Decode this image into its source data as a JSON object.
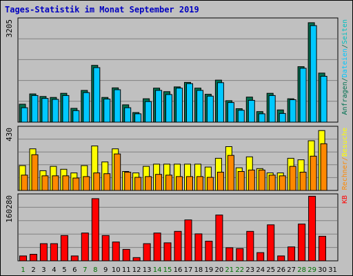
{
  "title": "Tages-Statistik im Monat September 2019",
  "colors": {
    "background": "#c0c0c0",
    "plot_background": "#c0c0c0",
    "grid": "#808080",
    "title": "#0000c0",
    "weekday": "#000000",
    "weekend": "#007000",
    "anfragen": "#007050",
    "dateien": "#00c8ff",
    "seiten": "#00c0c0",
    "besuche": "#ffff00",
    "rechner": "#ff8800",
    "kb": "#ff0000",
    "separator": "#000000"
  },
  "chart_data": [
    {
      "type": "bar",
      "panel": "top",
      "ylabel_max": "3205",
      "ylim": [
        0,
        3205
      ],
      "categories": [
        "1",
        "2",
        "3",
        "4",
        "5",
        "6",
        "7",
        "8",
        "9",
        "10",
        "11",
        "12",
        "13",
        "14",
        "15",
        "16",
        "17",
        "18",
        "19",
        "20",
        "21",
        "22",
        "23",
        "24",
        "25",
        "26",
        "27",
        "28",
        "29",
        "30",
        "31"
      ],
      "weekend_days": [
        "1",
        "7",
        "8",
        "14",
        "15",
        "21",
        "22",
        "28",
        "29"
      ],
      "series": [
        {
          "name": "Anfragen",
          "color": "#007050",
          "values": [
            560,
            880,
            800,
            770,
            900,
            430,
            990,
            1770,
            770,
            1070,
            540,
            300,
            730,
            1060,
            950,
            1100,
            1240,
            1060,
            870,
            1310,
            670,
            420,
            780,
            330,
            900,
            380,
            730,
            1730,
            3100,
            1530,
            0
          ]
        },
        {
          "name": "Dateien",
          "color": "#00c8ff",
          "values": [
            450,
            830,
            740,
            710,
            830,
            360,
            920,
            1700,
            720,
            1010,
            450,
            260,
            640,
            990,
            860,
            1060,
            1200,
            990,
            810,
            1230,
            610,
            370,
            680,
            260,
            830,
            270,
            700,
            1680,
            3010,
            1430,
            0
          ]
        }
      ],
      "right_labels": [
        {
          "text": "Anfragen",
          "color": "#007050"
        },
        {
          "text": "/",
          "color": "#007050"
        },
        {
          "text": "Dateien",
          "color": "#00c8ff"
        },
        {
          "text": "/",
          "color": "#007050"
        },
        {
          "text": "Seiten",
          "color": "#00c0c0"
        }
      ]
    },
    {
      "type": "bar",
      "panel": "middle",
      "ylabel_max": "430",
      "ylim": [
        0,
        430
      ],
      "categories": [
        "1",
        "2",
        "3",
        "4",
        "5",
        "6",
        "7",
        "8",
        "9",
        "10",
        "11",
        "12",
        "13",
        "14",
        "15",
        "16",
        "17",
        "18",
        "19",
        "20",
        "21",
        "22",
        "23",
        "24",
        "25",
        "26",
        "27",
        "28",
        "29",
        "30",
        "31"
      ],
      "series": [
        {
          "name": "Besuche",
          "color": "#ffff00",
          "values": [
            170,
            285,
            135,
            165,
            145,
            120,
            170,
            305,
            195,
            285,
            130,
            120,
            165,
            180,
            180,
            180,
            180,
            180,
            160,
            220,
            300,
            155,
            230,
            150,
            120,
            120,
            220,
            210,
            340,
            410,
            0
          ]
        },
        {
          "name": "Rechner",
          "color": "#ff8800",
          "values": [
            105,
            245,
            100,
            100,
            100,
            85,
            95,
            120,
            115,
            250,
            125,
            90,
            95,
            110,
            105,
            95,
            95,
            95,
            90,
            125,
            240,
            130,
            140,
            140,
            105,
            100,
            165,
            125,
            235,
            320,
            0
          ]
        }
      ],
      "right_labels": [
        {
          "text": "Rechner",
          "color": "#ff8800"
        },
        {
          "text": "/",
          "color": "#ff8800"
        },
        {
          "text": "Besuche",
          "color": "#ffff00"
        }
      ]
    },
    {
      "type": "bar",
      "panel": "bottom",
      "ylabel_max": "160280",
      "ylim": [
        0,
        160280
      ],
      "categories": [
        "1",
        "2",
        "3",
        "4",
        "5",
        "6",
        "7",
        "8",
        "9",
        "10",
        "11",
        "12",
        "13",
        "14",
        "15",
        "16",
        "17",
        "18",
        "19",
        "20",
        "21",
        "22",
        "23",
        "24",
        "25",
        "26",
        "27",
        "28",
        "29",
        "30",
        "31"
      ],
      "series": [
        {
          "name": "KB",
          "color": "#ff0000",
          "values": [
            12000,
            16000,
            42000,
            42000,
            62000,
            12000,
            68000,
            152000,
            62000,
            46000,
            28000,
            8000,
            42000,
            68000,
            44000,
            72000,
            100000,
            66000,
            48000,
            112000,
            32000,
            30000,
            72000,
            20000,
            88000,
            12000,
            34000,
            90000,
            158000,
            60000,
            0
          ]
        }
      ],
      "right_labels": [
        {
          "text": "KB",
          "color": "#ff0000"
        }
      ]
    }
  ]
}
